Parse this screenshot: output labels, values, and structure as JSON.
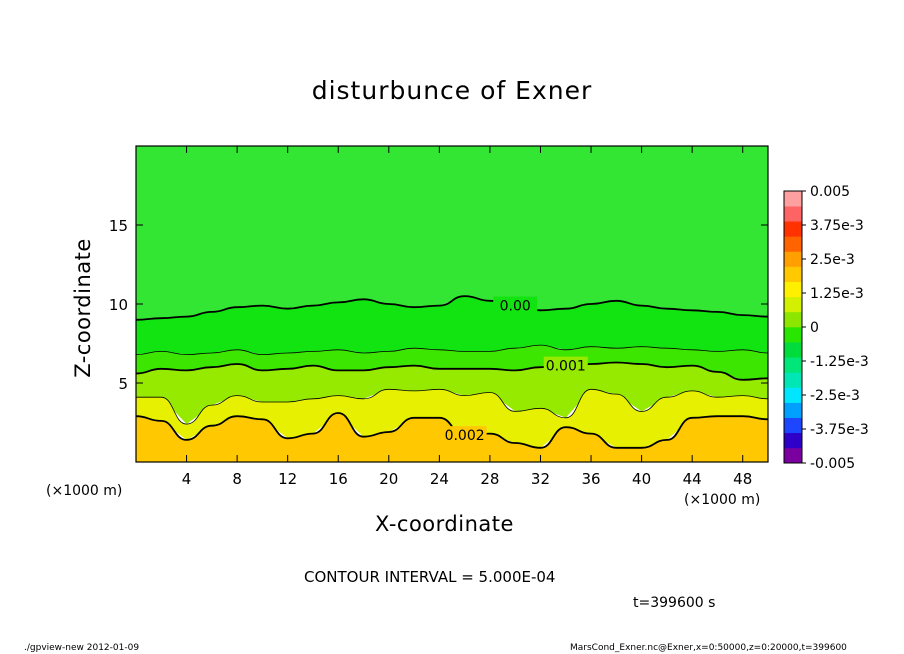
{
  "chart_data": {
    "type": "heatmap",
    "title": "disturbunce of Exner",
    "xlabel": "X-coordinate",
    "ylabel": "Z-coordinate",
    "x_unit": "(×1000 m)",
    "xlim": [
      0,
      50
    ],
    "ylim": [
      0,
      20
    ],
    "x_ticks": [
      4,
      8,
      12,
      16,
      20,
      24,
      28,
      32,
      36,
      40,
      44,
      48
    ],
    "y_ticks": [
      5,
      10,
      15
    ],
    "colorbar": {
      "labels": [
        "0.005",
        "3.75e-3",
        "2.5e-3",
        "1.25e-3",
        "0",
        "-1.25e-3",
        "-2.5e-3",
        "-3.75e-3",
        "-0.005"
      ],
      "range": [
        -0.005,
        0.005
      ]
    },
    "contour_interval": "CONTOUR INTERVAL = 5.000E-04",
    "contour_levels": [
      {
        "value": 0.0,
        "label": "0.00",
        "z": [
          9.0,
          9.1,
          9.2,
          9.5,
          9.8,
          9.9,
          9.7,
          9.9,
          10.1,
          10.3,
          10.0,
          9.8,
          9.9,
          10.5,
          10.2,
          9.9,
          9.6,
          9.7,
          10.0,
          10.2,
          9.9,
          9.7,
          9.6,
          9.5,
          9.3,
          9.2
        ]
      },
      {
        "value": 0.0005,
        "label": "",
        "z": [
          6.8,
          7.0,
          6.8,
          6.9,
          7.1,
          6.8,
          6.9,
          7.0,
          7.1,
          6.9,
          7.0,
          7.2,
          7.1,
          7.0,
          7.0,
          7.2,
          7.4,
          7.1,
          7.3,
          7.2,
          7.3,
          7.2,
          7.1,
          7.0,
          7.1,
          6.9
        ]
      },
      {
        "value": 0.001,
        "label": "0.001",
        "z": [
          5.6,
          5.9,
          5.8,
          6.0,
          6.2,
          5.8,
          5.9,
          6.1,
          5.8,
          5.8,
          6.0,
          6.1,
          5.9,
          5.9,
          5.9,
          5.8,
          6.0,
          6.1,
          6.2,
          6.3,
          6.2,
          6.0,
          6.1,
          5.7,
          5.2,
          5.3
        ]
      },
      {
        "value": 0.0015,
        "label": "",
        "z": [
          4.1,
          4.1,
          2.4,
          3.6,
          4.2,
          3.8,
          3.8,
          4.0,
          4.2,
          4.0,
          4.6,
          4.5,
          4.6,
          4.2,
          4.4,
          3.2,
          3.4,
          2.8,
          4.6,
          4.3,
          3.2,
          4.1,
          4.5,
          4.1,
          4.2,
          4.0
        ]
      },
      {
        "value": 0.002,
        "label": "0.002",
        "z": [
          2.9,
          2.6,
          1.4,
          2.3,
          2.9,
          2.7,
          1.5,
          1.8,
          3.1,
          1.6,
          1.9,
          2.8,
          2.8,
          1.7,
          1.8,
          1.2,
          0.9,
          2.2,
          1.8,
          0.9,
          0.9,
          1.4,
          2.8,
          2.9,
          2.9,
          2.7
        ]
      }
    ]
  },
  "labels": {
    "contour_interval": "CONTOUR INTERVAL = 5.000E-04",
    "time": "t=399600 s",
    "footer_left": "./gpview-new   2012-01-09",
    "footer_right": "MarsCond_Exner.nc@Exner,x=0:50000,z=0:20000,t=399600"
  },
  "colors": {
    "colorbar": [
      "#7b00a0",
      "#2e00c8",
      "#1e46ff",
      "#00a0ff",
      "#00e6ff",
      "#00e6b4",
      "#00e678",
      "#00dc3c",
      "#28e600",
      "#8ce600",
      "#d2f000",
      "#fff000",
      "#ffc800",
      "#ffa000",
      "#ff6400",
      "#ff3200",
      "#ff6464",
      "#ffa0a0"
    ],
    "contour": "#000000"
  }
}
